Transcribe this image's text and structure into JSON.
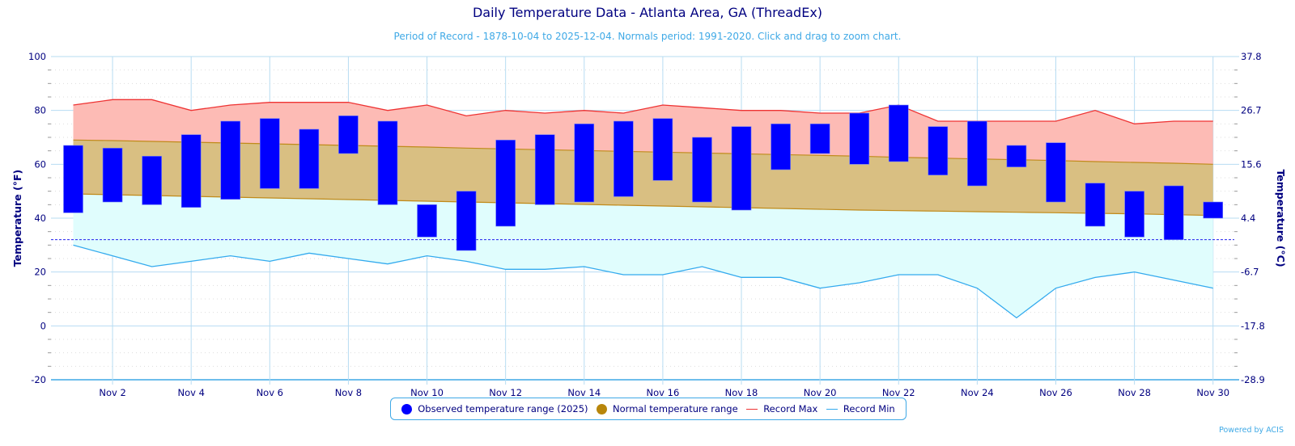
{
  "chart_data": {
    "type": "bar",
    "title": "Daily Temperature Data - Atlanta Area, GA (ThreadEx)",
    "subtitle": "Period of Record - 1878-10-04 to 2025-12-04. Normals period: 1991-2020. Click and drag to zoom chart.",
    "ylabel": "Temperature (°F)",
    "ylabel_right": "Temperature (°C)",
    "ylim": [
      -20,
      100
    ],
    "y_ticks": [
      100,
      80,
      60,
      40,
      20,
      0,
      -20
    ],
    "y_right_ticks": [
      "37.8",
      "26.7",
      "15.6",
      "4.4",
      "-6.7",
      "-17.8",
      "-28.9"
    ],
    "grid": true,
    "freezing_line": 32,
    "x": [
      "Nov 1",
      "Nov 2",
      "Nov 3",
      "Nov 4",
      "Nov 5",
      "Nov 6",
      "Nov 7",
      "Nov 8",
      "Nov 9",
      "Nov 10",
      "Nov 11",
      "Nov 12",
      "Nov 13",
      "Nov 14",
      "Nov 15",
      "Nov 16",
      "Nov 17",
      "Nov 18",
      "Nov 19",
      "Nov 20",
      "Nov 21",
      "Nov 22",
      "Nov 23",
      "Nov 24",
      "Nov 25",
      "Nov 26",
      "Nov 27",
      "Nov 28",
      "Nov 29",
      "Nov 30"
    ],
    "x_tick_labels": [
      "Nov 2",
      "Nov 4",
      "Nov 6",
      "Nov 8",
      "Nov 10",
      "Nov 12",
      "Nov 14",
      "Nov 16",
      "Nov 18",
      "Nov 20",
      "Nov 22",
      "Nov 24",
      "Nov 26",
      "Nov 28",
      "Nov 30"
    ],
    "series": [
      {
        "name": "Observed temperature range (2025)",
        "kind": "range-bar",
        "color": "#0000ff",
        "high": [
          67,
          66,
          63,
          71,
          76,
          77,
          73,
          78,
          76,
          45,
          50,
          69,
          71,
          75,
          76,
          77,
          70,
          74,
          75,
          75,
          79,
          82,
          74,
          76,
          67,
          68,
          53,
          50,
          52,
          46
        ],
        "low": [
          42,
          46,
          45,
          44,
          47,
          51,
          51,
          64,
          45,
          33,
          28,
          37,
          45,
          46,
          48,
          54,
          46,
          43,
          58,
          64,
          60,
          61,
          56,
          52,
          59,
          46,
          37,
          33,
          32,
          40
        ]
      },
      {
        "name": "Normal temperature range",
        "kind": "area-range",
        "color": "#b8860b",
        "high": [
          69,
          68.8,
          68.5,
          68.2,
          67.9,
          67.6,
          67.3,
          67.0,
          66.7,
          66.4,
          66.0,
          65.7,
          65.4,
          65.1,
          64.8,
          64.5,
          64.2,
          63.9,
          63.6,
          63.3,
          63.0,
          62.6,
          62.3,
          62.0,
          61.7,
          61.4,
          61.0,
          60.7,
          60.4,
          60.0
        ],
        "low": [
          49,
          48.7,
          48.4,
          48.1,
          47.8,
          47.5,
          47.2,
          46.9,
          46.6,
          46.3,
          46.0,
          45.7,
          45.4,
          45.1,
          44.8,
          44.5,
          44.2,
          43.9,
          43.6,
          43.3,
          43.0,
          42.8,
          42.6,
          42.4,
          42.2,
          42.0,
          41.8,
          41.6,
          41.3,
          41.0
        ]
      },
      {
        "name": "Record Max",
        "kind": "line",
        "color": "#ee3333",
        "values": [
          82,
          84,
          84,
          80,
          82,
          83,
          83,
          83,
          80,
          82,
          78,
          80,
          79,
          80,
          79,
          82,
          81,
          80,
          80,
          79,
          79,
          82,
          76,
          76,
          76,
          76,
          80,
          75,
          76,
          76
        ]
      },
      {
        "name": "Record Min",
        "kind": "line",
        "color": "#33aaee",
        "values": [
          30,
          26,
          22,
          24,
          26,
          24,
          27,
          25,
          23,
          26,
          24,
          21,
          21,
          22,
          19,
          19,
          22,
          18,
          18,
          14,
          16,
          19,
          19,
          14,
          3,
          14,
          18,
          20,
          17,
          14
        ]
      }
    ],
    "legend_position": "bottom-center"
  },
  "legend": [
    {
      "label": "Observed temperature range (2025)",
      "symbol": "dot",
      "color": "#0000ff"
    },
    {
      "label": "Normal temperature range",
      "symbol": "dot",
      "color": "#b8860b"
    },
    {
      "label": "Record Max",
      "symbol": "line",
      "color": "#ee3333"
    },
    {
      "label": "Record Min",
      "symbol": "line",
      "color": "#33aaee"
    }
  ],
  "credits": "Powered by ACIS"
}
